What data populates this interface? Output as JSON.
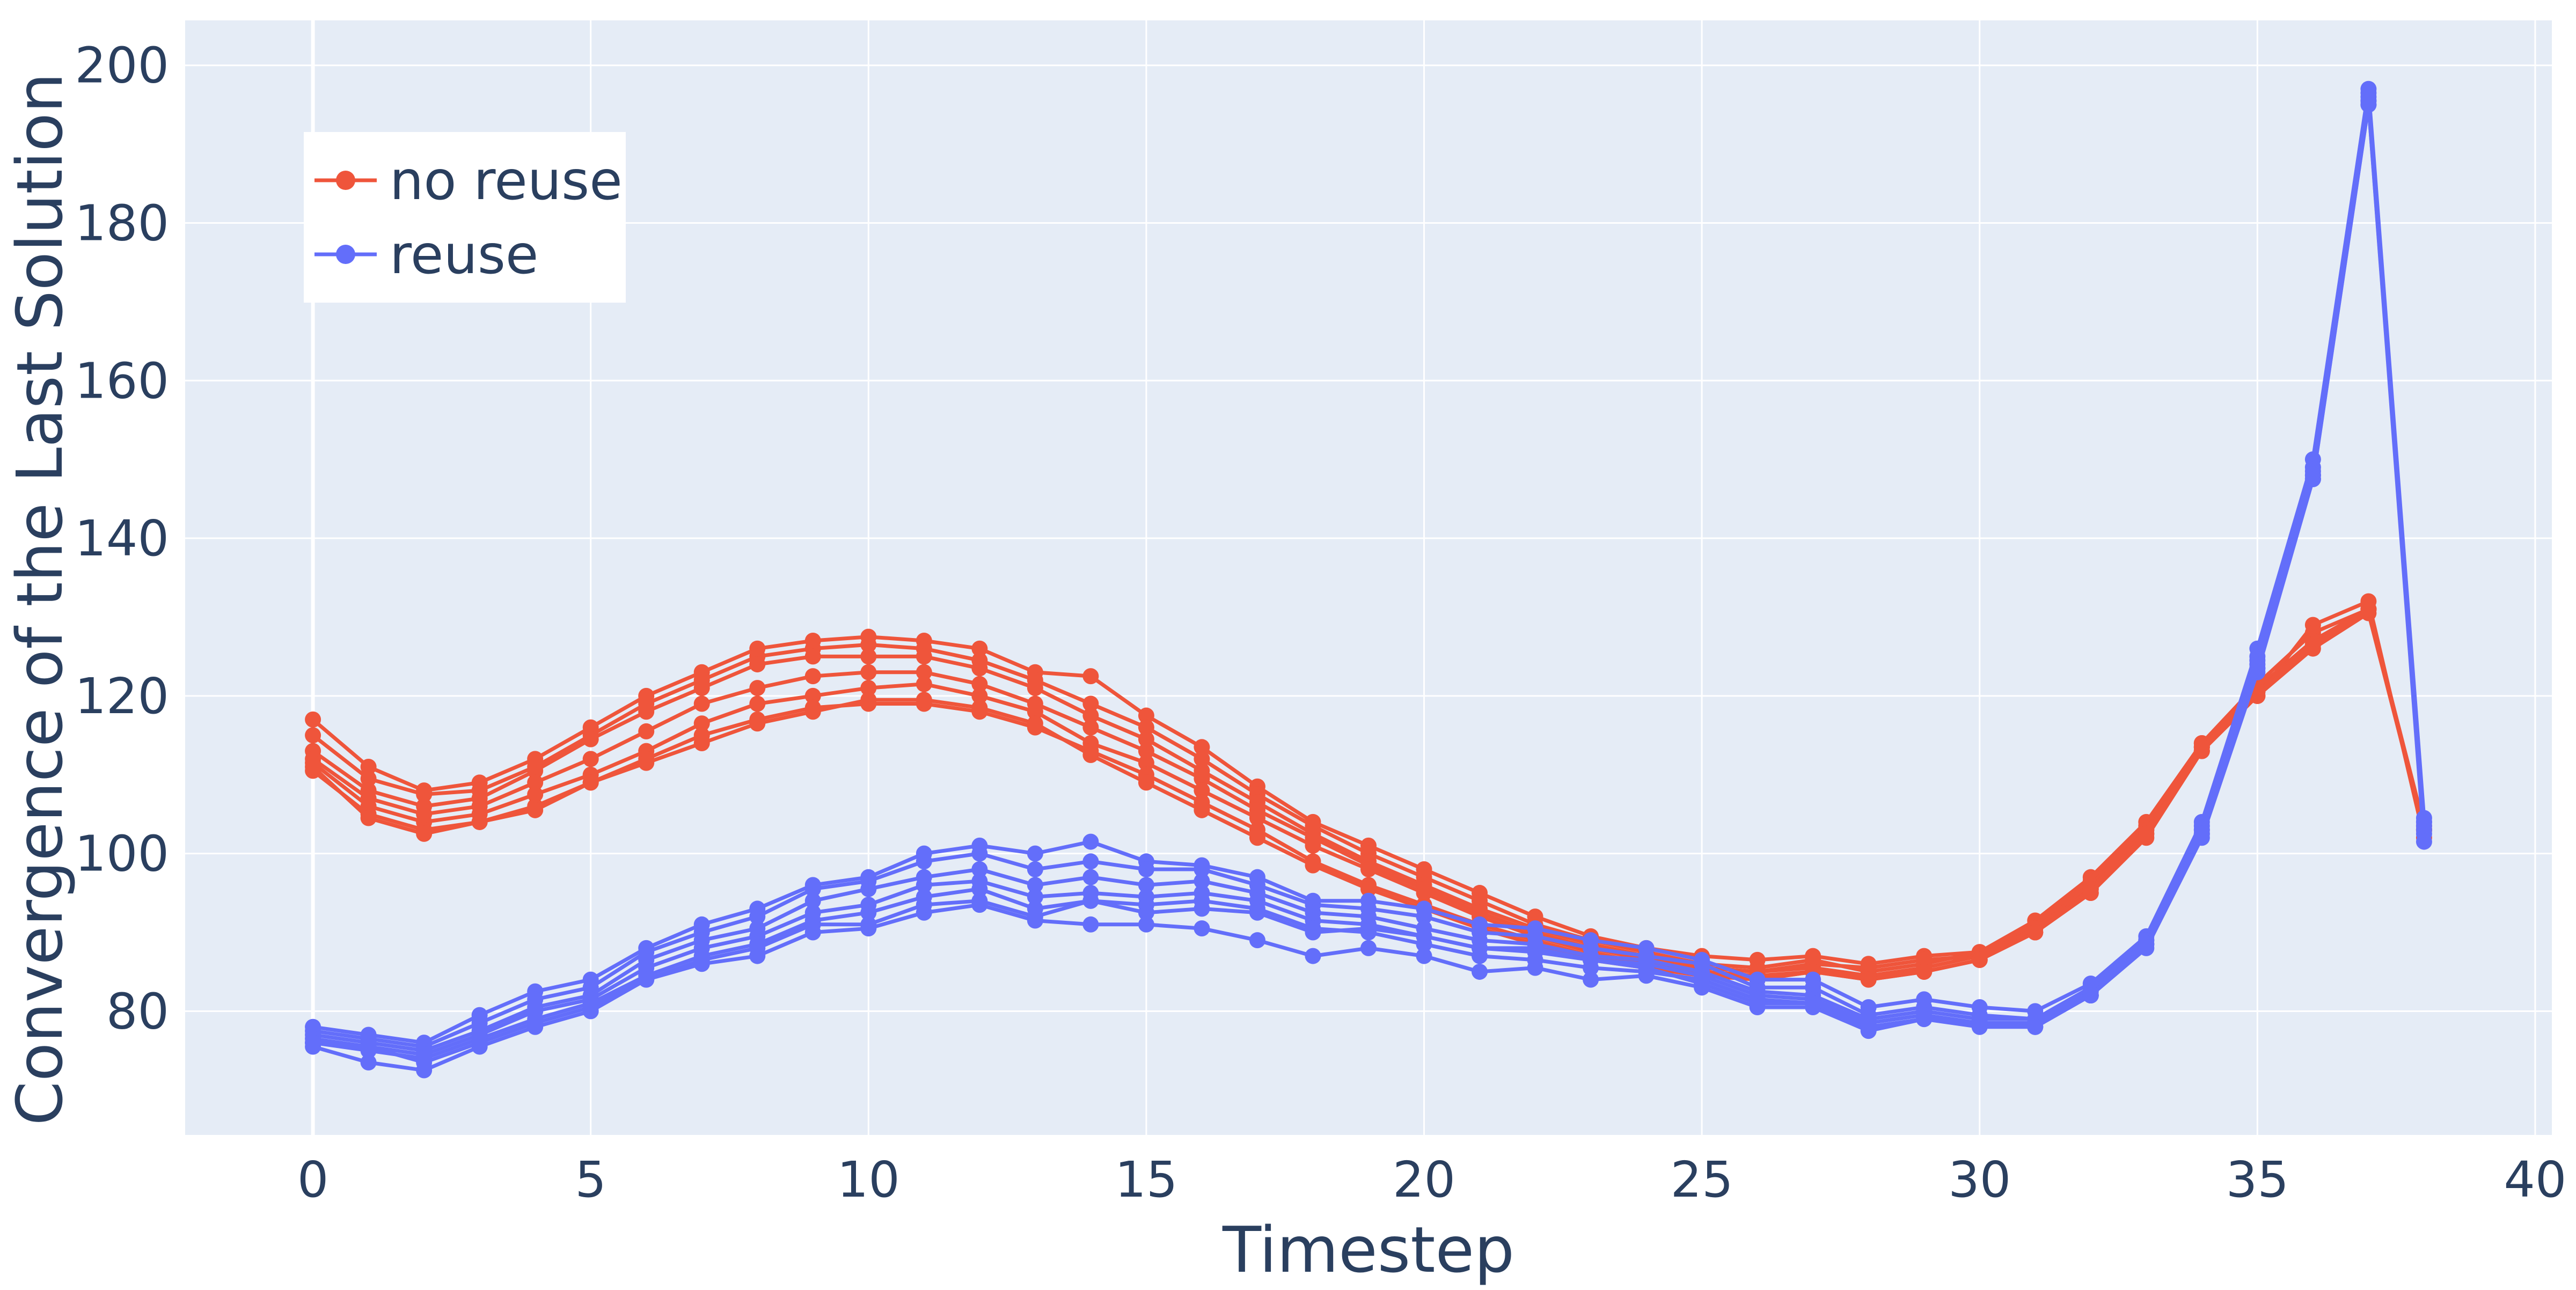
{
  "chart_data": {
    "type": "line",
    "title": "",
    "xlabel": "Timestep",
    "ylabel": "Convergence of the Last Solution",
    "xlim": [
      -2.3,
      40.3
    ],
    "ylim": [
      64.3,
      205.7
    ],
    "x_ticks": [
      0,
      5,
      10,
      15,
      20,
      25,
      30,
      35,
      40
    ],
    "y_ticks": [
      80,
      100,
      120,
      140,
      160,
      180,
      200
    ],
    "x_tick_labels": [
      "0",
      "5",
      "10",
      "15",
      "20",
      "25",
      "30",
      "35",
      "40"
    ],
    "y_tick_labels": [
      "80",
      "100",
      "120",
      "140",
      "160",
      "180",
      "200"
    ],
    "grid": true,
    "legend_position": "top-left",
    "colors": {
      "plot_bg": "#e5ecf6",
      "grid": "#ffffff",
      "text": "#2a3f5f",
      "no_reuse": "#ef553b",
      "reuse": "#636efa"
    },
    "legend": [
      {
        "label": "no reuse",
        "color": "#ef553b"
      },
      {
        "label": "reuse",
        "color": "#636efa"
      }
    ],
    "series": [
      {
        "group": "no reuse",
        "color": "#ef553b",
        "x": [
          0,
          1,
          2,
          3,
          4,
          5,
          6,
          7,
          8,
          9,
          10,
          11,
          12,
          13,
          14,
          15,
          16,
          17,
          18,
          19,
          20,
          21,
          22,
          23,
          24,
          25,
          26,
          27,
          28,
          29,
          30,
          31,
          32,
          33,
          34,
          35,
          36,
          37,
          38
        ],
        "y": [
          117,
          111,
          108,
          109,
          112,
          116,
          120,
          123,
          126,
          127,
          127.5,
          127,
          126,
          123,
          122.5,
          117.5,
          113.5,
          108.5,
          104,
          101,
          98,
          95,
          92,
          89.5,
          88,
          87,
          86.5,
          87,
          86,
          87,
          87.5,
          91.5,
          97,
          104,
          114,
          120,
          129,
          132,
          102
        ]
      },
      {
        "group": "no reuse",
        "color": "#ef553b",
        "x": [
          0,
          1,
          2,
          3,
          4,
          5,
          6,
          7,
          8,
          9,
          10,
          11,
          12,
          13,
          14,
          15,
          16,
          17,
          18,
          19,
          20,
          21,
          22,
          23,
          24,
          25,
          26,
          27,
          28,
          29,
          30,
          31,
          32,
          33,
          34,
          35,
          36,
          37,
          38
        ],
        "y": [
          115,
          109.5,
          107.5,
          108,
          111,
          115,
          119,
          122,
          125,
          126,
          126.5,
          126,
          124.5,
          122,
          119,
          116,
          112,
          107.5,
          103.5,
          100,
          97,
          94,
          91,
          89,
          87.5,
          86,
          85.5,
          86.5,
          85,
          86,
          87.5,
          91,
          96.5,
          103.5,
          114,
          121.5,
          128,
          131,
          103
        ]
      },
      {
        "group": "no reuse",
        "color": "#ef553b",
        "x": [
          0,
          1,
          2,
          3,
          4,
          5,
          6,
          7,
          8,
          9,
          10,
          11,
          12,
          13,
          14,
          15,
          16,
          17,
          18,
          19,
          20,
          21,
          22,
          23,
          24,
          25,
          26,
          27,
          28,
          29,
          30,
          31,
          32,
          33,
          34,
          35,
          36,
          37,
          38
        ],
        "y": [
          113,
          108,
          106,
          107,
          110.5,
          114.5,
          118,
          121,
          124,
          125,
          125,
          125,
          123.5,
          121,
          117.5,
          114.5,
          110.5,
          106.5,
          102.5,
          99,
          96,
          93,
          90.5,
          88.5,
          87,
          85.5,
          85,
          86,
          85.5,
          86.5,
          87,
          90.5,
          96,
          103,
          113.5,
          121,
          127,
          131,
          103.5
        ]
      },
      {
        "group": "no reuse",
        "color": "#ef553b",
        "x": [
          0,
          1,
          2,
          3,
          4,
          5,
          6,
          7,
          8,
          9,
          10,
          11,
          12,
          13,
          14,
          15,
          16,
          17,
          18,
          19,
          20,
          21,
          22,
          23,
          24,
          25,
          26,
          27,
          28,
          29,
          30,
          31,
          32,
          33,
          34,
          35,
          36,
          37,
          38
        ],
        "y": [
          112,
          107,
          105,
          106,
          109,
          112,
          115.5,
          119,
          121,
          122.5,
          123,
          123,
          121.5,
          119,
          116,
          113,
          109.5,
          105.5,
          102,
          98.5,
          95.5,
          92.5,
          90,
          88,
          86.5,
          85.5,
          85,
          85.5,
          84.5,
          85.5,
          87,
          90.5,
          95.5,
          103,
          113,
          120.5,
          127,
          131,
          103
        ]
      },
      {
        "group": "no reuse",
        "color": "#ef553b",
        "x": [
          0,
          1,
          2,
          3,
          4,
          5,
          6,
          7,
          8,
          9,
          10,
          11,
          12,
          13,
          14,
          15,
          16,
          17,
          18,
          19,
          20,
          21,
          22,
          23,
          24,
          25,
          26,
          27,
          28,
          29,
          30,
          31,
          32,
          33,
          34,
          35,
          36,
          37,
          38
        ],
        "y": [
          111.5,
          106,
          104,
          105,
          107.5,
          110,
          113,
          116.5,
          119,
          120,
          121,
          121.5,
          120,
          118,
          114,
          111.5,
          108,
          104.5,
          101,
          98,
          95,
          92,
          89.5,
          87.5,
          86,
          85,
          84,
          85,
          84.5,
          85,
          86.5,
          90,
          95.5,
          102.5,
          113.5,
          120.5,
          126.5,
          131,
          103
        ]
      },
      {
        "group": "no reuse",
        "color": "#ef553b",
        "x": [
          0,
          1,
          2,
          3,
          4,
          5,
          6,
          7,
          8,
          9,
          10,
          11,
          12,
          13,
          14,
          15,
          16,
          17,
          18,
          19,
          20,
          21,
          22,
          23,
          24,
          25,
          26,
          27,
          28,
          29,
          30,
          31,
          32,
          33,
          34,
          35,
          36,
          37,
          38
        ],
        "y": [
          110.5,
          105,
          103,
          104,
          106,
          109,
          112,
          115,
          117,
          118.5,
          119,
          119,
          118,
          116,
          113,
          110,
          106.5,
          103,
          99,
          96,
          93.5,
          91,
          89,
          87,
          86,
          85,
          84.5,
          85,
          84,
          85,
          86.5,
          90,
          95,
          102,
          113,
          120,
          126,
          130.5,
          103
        ]
      },
      {
        "group": "no reuse",
        "color": "#ef553b",
        "x": [
          0,
          1,
          2,
          3,
          4,
          5,
          6,
          7,
          8,
          9,
          10,
          11,
          12,
          13,
          14,
          15,
          16,
          17,
          18,
          19,
          20,
          21,
          22,
          23,
          24,
          25,
          26,
          27,
          28,
          29,
          30,
          31,
          32,
          33,
          34,
          35,
          36,
          37,
          38
        ],
        "y": [
          111,
          104.5,
          102.5,
          104,
          105.5,
          109,
          111.5,
          114,
          116.5,
          118,
          119.5,
          119.5,
          118.5,
          116.5,
          112.5,
          109,
          105.5,
          102,
          98.5,
          95.5,
          93,
          90.5,
          88.5,
          86.5,
          85.5,
          84.5,
          84,
          85,
          84,
          85,
          86.5,
          90,
          95,
          102.5,
          113.5,
          120,
          126.5,
          131,
          103
        ]
      },
      {
        "group": "reuse",
        "color": "#636efa",
        "x": [
          0,
          1,
          2,
          3,
          4,
          5,
          6,
          7,
          8,
          9,
          10,
          11,
          12,
          13,
          14,
          15,
          16,
          17,
          18,
          19,
          20,
          21,
          22,
          23,
          24,
          25,
          26,
          27,
          28,
          29,
          30,
          31,
          32,
          33,
          34,
          35,
          36,
          37,
          38
        ],
        "y": [
          78,
          77,
          76,
          79.5,
          82.5,
          84,
          88,
          91,
          93,
          96,
          97,
          100,
          101,
          100,
          101.5,
          99,
          98.5,
          97,
          94,
          94,
          93,
          91,
          90.5,
          89,
          88,
          86.5,
          84,
          84,
          80.5,
          81.5,
          80.5,
          80,
          83.5,
          89.5,
          104,
          126,
          150,
          197,
          104.5
        ]
      },
      {
        "group": "reuse",
        "color": "#636efa",
        "x": [
          0,
          1,
          2,
          3,
          4,
          5,
          6,
          7,
          8,
          9,
          10,
          11,
          12,
          13,
          14,
          15,
          16,
          17,
          18,
          19,
          20,
          21,
          22,
          23,
          24,
          25,
          26,
          27,
          28,
          29,
          30,
          31,
          32,
          33,
          34,
          35,
          36,
          37,
          38
        ],
        "y": [
          77.5,
          76.5,
          75.5,
          78.5,
          81.5,
          83,
          87.5,
          90,
          92,
          95.5,
          96.5,
          99,
          100,
          98,
          99,
          98,
          98,
          96,
          93.5,
          93,
          92,
          90,
          89.5,
          88,
          87,
          86,
          83,
          83,
          79.5,
          80.5,
          79.5,
          79,
          83,
          89,
          103.5,
          125,
          149,
          196.5,
          104
        ]
      },
      {
        "group": "reuse",
        "color": "#636efa",
        "x": [
          0,
          1,
          2,
          3,
          4,
          5,
          6,
          7,
          8,
          9,
          10,
          11,
          12,
          13,
          14,
          15,
          16,
          17,
          18,
          19,
          20,
          21,
          22,
          23,
          24,
          25,
          26,
          27,
          28,
          29,
          30,
          31,
          32,
          33,
          34,
          35,
          36,
          37,
          38
        ],
        "y": [
          77,
          76,
          75,
          77.5,
          80.5,
          82,
          86.5,
          89,
          90.5,
          94,
          95.5,
          97,
          98,
          96,
          97,
          96,
          96.5,
          95,
          92.5,
          92,
          90.5,
          89,
          88.5,
          87,
          86.5,
          85,
          82.5,
          82,
          79,
          80,
          79,
          79,
          82.5,
          89,
          103,
          124.5,
          148.5,
          196,
          103.5
        ]
      },
      {
        "group": "reuse",
        "color": "#636efa",
        "x": [
          0,
          1,
          2,
          3,
          4,
          5,
          6,
          7,
          8,
          9,
          10,
          11,
          12,
          13,
          14,
          15,
          16,
          17,
          18,
          19,
          20,
          21,
          22,
          23,
          24,
          25,
          26,
          27,
          28,
          29,
          30,
          31,
          32,
          33,
          34,
          35,
          36,
          37,
          38
        ],
        "y": [
          76.5,
          75.5,
          74.5,
          77,
          80,
          81.5,
          85.5,
          88,
          89.5,
          92.5,
          93.5,
          96,
          96.5,
          94.5,
          95,
          94.5,
          95,
          94,
          91.5,
          91,
          89.5,
          88,
          87.5,
          86.5,
          86,
          84.5,
          82,
          81.5,
          78.5,
          79.5,
          78.5,
          78.5,
          82,
          88.5,
          103,
          124,
          148,
          195.5,
          103
        ]
      },
      {
        "group": "reuse",
        "color": "#636efa",
        "x": [
          0,
          1,
          2,
          3,
          4,
          5,
          6,
          7,
          8,
          9,
          10,
          11,
          12,
          13,
          14,
          15,
          16,
          17,
          18,
          19,
          20,
          21,
          22,
          23,
          24,
          25,
          26,
          27,
          28,
          29,
          30,
          31,
          32,
          33,
          34,
          35,
          36,
          37,
          38
        ],
        "y": [
          76,
          75,
          74,
          76.5,
          79,
          81,
          84.5,
          87,
          88.5,
          91.5,
          92.5,
          94.5,
          95.5,
          93,
          94,
          93.5,
          94,
          93,
          90.5,
          90,
          88.5,
          87,
          86.5,
          85.5,
          85,
          84,
          81.5,
          81,
          78,
          79,
          78.5,
          78,
          82,
          88.5,
          102.5,
          123.5,
          147.5,
          195,
          102.5
        ]
      },
      {
        "group": "reuse",
        "color": "#636efa",
        "x": [
          0,
          1,
          2,
          3,
          4,
          5,
          6,
          7,
          8,
          9,
          10,
          11,
          12,
          13,
          14,
          15,
          16,
          17,
          18,
          19,
          20,
          21,
          22,
          23,
          24,
          25,
          26,
          27,
          28,
          29,
          30,
          31,
          32,
          33,
          34,
          35,
          36,
          37,
          38
        ],
        "y": [
          75.5,
          73.5,
          72.5,
          75.5,
          78,
          80,
          84,
          86,
          87,
          90,
          90.5,
          92.5,
          93.5,
          91.5,
          91,
          91,
          90.5,
          89,
          87,
          88,
          87,
          85,
          85.5,
          84,
          84.5,
          83,
          80.5,
          80.5,
          77.5,
          79,
          78.5,
          78,
          82,
          88,
          102,
          123,
          147.5,
          195,
          101.5
        ]
      },
      {
        "group": "reuse",
        "color": "#636efa",
        "x": [
          0,
          1,
          2,
          3,
          4,
          5,
          6,
          7,
          8,
          9,
          10,
          11,
          12,
          13,
          14,
          15,
          16,
          17,
          18,
          19,
          20,
          21,
          22,
          23,
          24,
          25,
          26,
          27,
          28,
          29,
          30,
          31,
          32,
          33,
          34,
          35,
          36,
          37,
          38
        ],
        "y": [
          76,
          75.5,
          73.5,
          76,
          78.5,
          80.5,
          84,
          86.5,
          88,
          91,
          91,
          93.5,
          94,
          92,
          94,
          92.5,
          93,
          92.5,
          90,
          90.5,
          89.5,
          88,
          88,
          86.5,
          85.5,
          83.5,
          81,
          81,
          78,
          79,
          78,
          78,
          82,
          88.5,
          102.5,
          123.5,
          148,
          195.5,
          104
        ]
      }
    ]
  }
}
